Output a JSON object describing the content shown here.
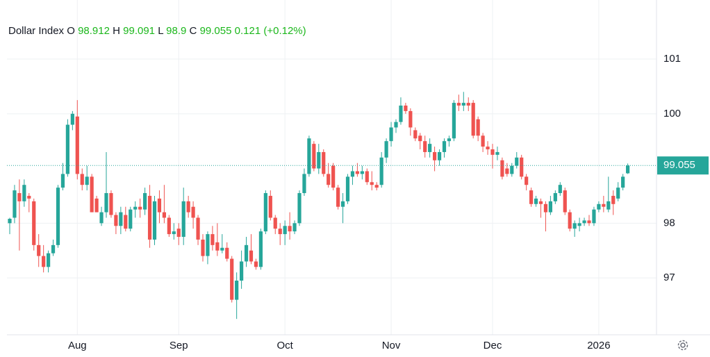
{
  "chart_data": {
    "type": "candlestick",
    "header": {
      "symbol": "Dollar Index",
      "open_label": "O",
      "open": 98.912,
      "high_label": "H",
      "high": 99.091,
      "low_label": "L",
      "low": 98.9,
      "close_label": "C",
      "close": 99.055,
      "change": 0.121,
      "change_pct": "(+0.12%)"
    },
    "last_price": 99.055,
    "up_color": "#26a69a",
    "down_color": "#ef5350",
    "grid": true,
    "ylim": [
      95.96,
      102.08
    ],
    "yticks": [
      97,
      98,
      100,
      101
    ],
    "categories": [
      null,
      null,
      null,
      null,
      null,
      null,
      null,
      null,
      null,
      null,
      null,
      null,
      null,
      null,
      "Aug",
      null,
      null,
      null,
      null,
      null,
      null,
      null,
      null,
      null,
      null,
      null,
      null,
      null,
      null,
      null,
      null,
      null,
      null,
      null,
      null,
      "Sep",
      null,
      null,
      null,
      null,
      null,
      null,
      null,
      null,
      null,
      null,
      null,
      null,
      null,
      null,
      null,
      null,
      null,
      null,
      null,
      null,
      null,
      "Oct",
      null,
      null,
      null,
      null,
      null,
      null,
      null,
      null,
      null,
      null,
      null,
      null,
      null,
      null,
      null,
      null,
      null,
      null,
      null,
      null,
      null,
      "Nov",
      null,
      null,
      null,
      null,
      null,
      null,
      null,
      null,
      null,
      null,
      null,
      null,
      null,
      null,
      null,
      null,
      null,
      null,
      null,
      null,
      "Dec",
      null,
      null,
      null,
      null,
      null,
      null,
      null,
      null,
      null,
      null,
      null,
      null,
      null,
      null,
      null,
      null,
      null,
      null,
      null,
      null,
      null,
      "2026",
      null,
      null,
      null,
      null,
      null,
      null
    ],
    "open": [
      98.0,
      98.1,
      98.55,
      98.4,
      98.5,
      98.4,
      97.6,
      97.4,
      97.2,
      97.45,
      97.6,
      98.65,
      98.9,
      99.8,
      99.95,
      98.9,
      98.7,
      98.85,
      98.45,
      98.0,
      98.2,
      98.55,
      98.15,
      97.95,
      98.15,
      97.9,
      98.25,
      98.3,
      98.25,
      98.5,
      97.7,
      98.45,
      98.2,
      98.1,
      97.8,
      97.9,
      97.75,
      98.4,
      98.3,
      98.1,
      97.7,
      97.4,
      97.8,
      97.65,
      97.5,
      97.55,
      97.35,
      96.6,
      96.95,
      97.3,
      97.5,
      97.3,
      97.2,
      97.85,
      98.5,
      98.1,
      97.9,
      97.8,
      97.95,
      97.85,
      98.0,
      98.55,
      98.9,
      99.45,
      99.0,
      99.3,
      98.9,
      99.05,
      98.65,
      98.3,
      98.4,
      98.85,
      98.95,
      98.9,
      98.95,
      98.75,
      98.7,
      98.7,
      99.2,
      99.5,
      99.75,
      99.85,
      100.15,
      100.05,
      99.7,
      99.6,
      99.5,
      99.3,
      99.3,
      99.15,
      99.3,
      99.5,
      99.55,
      100.2,
      100.15,
      100.2,
      100.2,
      99.9,
      99.6,
      99.4,
      99.35,
      99.25,
      99.15,
      99.0,
      98.9,
      99.05,
      99.2,
      98.85,
      98.6,
      98.35,
      98.4,
      98.35,
      98.2,
      98.4,
      98.55,
      98.6,
      98.2,
      97.9,
      97.95,
      98.0,
      98.05,
      98.0,
      98.25,
      98.35,
      98.25,
      98.5,
      98.45,
      98.65,
      98.912
    ],
    "high": [
      98.1,
      98.7,
      98.8,
      98.8,
      98.55,
      98.45,
      97.8,
      97.6,
      97.5,
      97.7,
      98.7,
      99.1,
      99.9,
      100.05,
      100.25,
      99.0,
      99.05,
      98.9,
      98.5,
      98.3,
      99.3,
      98.6,
      98.2,
      98.3,
      98.3,
      98.3,
      98.4,
      98.45,
      98.65,
      98.7,
      98.5,
      98.6,
      98.7,
      98.15,
      98.0,
      98.0,
      98.65,
      98.5,
      98.4,
      98.15,
      97.8,
      97.85,
      97.95,
      98.0,
      97.8,
      97.65,
      97.4,
      97.1,
      97.5,
      97.75,
      97.8,
      97.35,
      97.9,
      98.6,
      98.6,
      98.15,
      98.0,
      98.05,
      98.2,
      98.05,
      98.6,
      99.0,
      99.6,
      99.5,
      99.45,
      99.35,
      99.1,
      99.1,
      98.7,
      98.55,
      98.9,
      99.05,
      99.1,
      99.05,
      99.0,
      98.95,
      98.75,
      99.3,
      99.55,
      99.85,
      99.9,
      100.3,
      100.2,
      100.1,
      99.75,
      99.65,
      99.6,
      99.55,
      99.4,
      99.35,
      99.55,
      99.6,
      100.25,
      100.35,
      100.4,
      100.3,
      100.25,
      99.95,
      99.65,
      99.5,
      99.45,
      99.4,
      99.2,
      99.1,
      99.1,
      99.3,
      99.25,
      98.9,
      98.65,
      98.5,
      98.45,
      98.4,
      98.5,
      98.6,
      98.75,
      98.65,
      98.25,
      98.05,
      98.1,
      98.1,
      98.15,
      98.3,
      98.4,
      98.5,
      98.85,
      98.6,
      98.75,
      98.9,
      99.091
    ],
    "low": [
      97.8,
      98.0,
      97.5,
      98.3,
      98.2,
      97.5,
      97.2,
      97.1,
      97.1,
      97.4,
      97.55,
      98.6,
      98.85,
      99.7,
      98.8,
      98.6,
      98.6,
      98.2,
      98.2,
      97.95,
      98.1,
      98.1,
      97.8,
      97.8,
      97.85,
      97.85,
      98.1,
      98.1,
      98.15,
      97.55,
      97.6,
      98.0,
      98.0,
      97.75,
      97.7,
      97.6,
      97.6,
      98.1,
      97.9,
      97.6,
      97.3,
      97.25,
      97.5,
      97.4,
      97.45,
      97.3,
      96.55,
      96.25,
      96.8,
      97.2,
      97.25,
      97.15,
      97.15,
      97.8,
      98.05,
      97.8,
      97.6,
      97.6,
      97.7,
      97.8,
      97.95,
      98.5,
      98.85,
      98.95,
      98.9,
      98.85,
      98.65,
      98.6,
      98.25,
      98.0,
      98.35,
      98.7,
      98.85,
      98.8,
      98.7,
      98.6,
      98.6,
      98.65,
      99.1,
      99.4,
      99.65,
      99.8,
      100.0,
      99.6,
      99.5,
      99.35,
      99.2,
      99.2,
      98.95,
      99.05,
      99.2,
      99.4,
      99.5,
      100.05,
      100.05,
      100.05,
      99.55,
      99.5,
      99.3,
      99.25,
      99.0,
      99.15,
      98.8,
      98.85,
      98.85,
      99.0,
      98.8,
      98.6,
      98.3,
      98.3,
      98.1,
      97.85,
      98.15,
      98.35,
      98.5,
      98.15,
      97.85,
      97.75,
      97.85,
      97.95,
      97.95,
      97.95,
      98.2,
      98.2,
      98.2,
      98.15,
      98.4,
      98.6,
      98.9
    ],
    "close": [
      98.08,
      98.6,
      98.4,
      98.7,
      98.45,
      97.6,
      97.4,
      97.2,
      97.45,
      97.6,
      98.65,
      98.9,
      99.8,
      100.0,
      98.9,
      98.7,
      98.85,
      98.2,
      98.2,
      98.2,
      98.55,
      98.15,
      97.95,
      98.2,
      97.9,
      98.25,
      98.3,
      98.25,
      98.55,
      97.7,
      98.4,
      98.2,
      98.1,
      97.8,
      97.85,
      97.75,
      98.4,
      98.2,
      98.1,
      97.7,
      97.4,
      97.8,
      97.6,
      97.5,
      97.55,
      97.35,
      96.6,
      96.95,
      97.3,
      97.6,
      97.3,
      97.2,
      97.85,
      98.55,
      98.1,
      97.9,
      97.8,
      97.95,
      97.85,
      98.0,
      98.55,
      98.9,
      99.55,
      99.0,
      99.3,
      98.9,
      98.7,
      98.65,
      98.3,
      98.4,
      98.85,
      98.95,
      98.9,
      98.95,
      98.75,
      98.7,
      98.65,
      99.2,
      99.5,
      99.75,
      99.85,
      100.15,
      100.05,
      99.75,
      99.55,
      99.5,
      99.3,
      99.45,
      99.15,
      99.3,
      99.5,
      99.55,
      100.2,
      100.15,
      100.2,
      100.15,
      99.6,
      99.6,
      99.4,
      99.35,
      99.25,
      99.3,
      98.85,
      98.9,
      99.05,
      99.2,
      98.85,
      98.7,
      98.35,
      98.45,
      98.35,
      98.2,
      98.4,
      98.55,
      98.7,
      98.2,
      97.9,
      98.0,
      98.0,
      98.05,
      98.0,
      98.25,
      98.35,
      98.3,
      98.4,
      98.35,
      98.65,
      98.85,
      99.055
    ]
  }
}
